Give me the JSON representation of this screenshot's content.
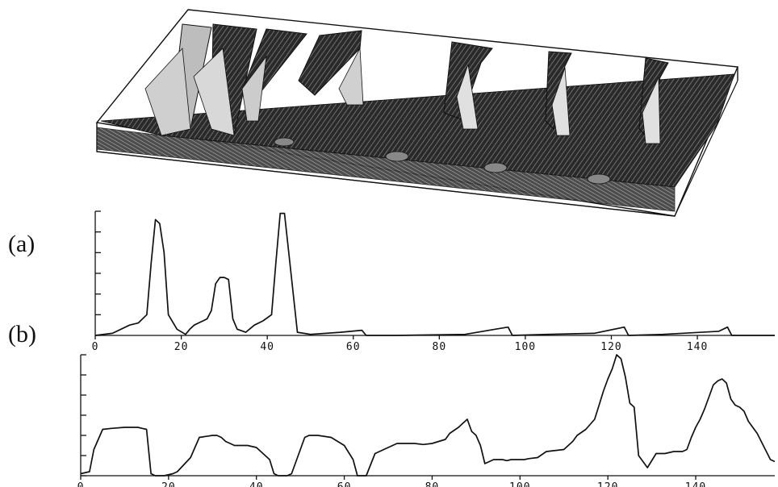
{
  "panel_labels": {
    "a": "(a)",
    "b": "(b)"
  },
  "chart_data": [
    {
      "type": "surface3d",
      "description_free": true,
      "pulses_t": [
        14,
        29,
        43,
        62,
        95,
        122,
        148
      ]
    },
    {
      "type": "line",
      "panel": "(a)",
      "xlim": [
        0,
        158
      ],
      "ylim": [
        0,
        6
      ],
      "xticks": [
        0,
        20,
        40,
        60,
        80,
        100,
        120,
        140
      ],
      "series": [
        {
          "x": [
            0,
            4,
            8,
            10,
            12,
            13,
            14,
            15,
            16,
            17,
            19,
            21,
            22,
            23,
            24,
            26,
            27,
            28,
            29,
            30,
            31,
            32,
            33,
            35,
            37,
            39,
            41,
            42,
            43,
            44,
            45,
            47,
            50,
            57,
            62,
            63,
            70,
            86,
            93,
            96,
            97,
            105,
            116,
            123,
            124,
            132,
            145,
            147,
            148,
            158
          ],
          "y": [
            0,
            0.1,
            0.5,
            0.6,
            1.0,
            3.5,
            5.6,
            5.4,
            4.0,
            1.0,
            0.3,
            0.05,
            0.3,
            0.5,
            0.6,
            0.8,
            1.2,
            2.5,
            2.8,
            2.8,
            2.7,
            0.8,
            0.3,
            0.15,
            0.5,
            0.7,
            1.0,
            3.5,
            5.9,
            5.9,
            4.0,
            0.15,
            0.05,
            0.15,
            0.25,
            0.0,
            0.0,
            0.05,
            0.3,
            0.4,
            0.0,
            0.05,
            0.1,
            0.4,
            0.0,
            0.05,
            0.2,
            0.4,
            0.0,
            0.0
          ]
        }
      ]
    },
    {
      "type": "line",
      "panel": "(b)",
      "xlim": [
        0,
        158
      ],
      "ylim": [
        0,
        6
      ],
      "xticks": [
        0,
        20,
        40,
        60,
        80,
        100,
        120,
        140
      ],
      "series": [
        {
          "x": [
            0,
            2,
            3,
            5,
            7,
            10,
            12,
            13,
            14,
            15,
            16,
            17,
            18,
            19,
            21,
            22,
            25,
            27,
            30,
            31,
            32,
            33,
            34,
            35,
            38,
            40,
            43,
            44,
            45,
            46,
            47,
            48,
            51,
            52,
            54,
            57,
            60,
            62,
            63,
            64,
            65,
            67,
            72,
            76,
            78,
            80,
            83,
            84,
            86,
            87,
            88,
            89,
            90,
            91,
            92,
            94,
            95,
            96,
            97,
            98,
            99,
            100,
            101,
            102,
            104,
            106,
            110,
            112,
            113,
            115,
            117,
            118,
            119,
            120,
            121,
            122,
            123,
            124,
            125,
            126,
            127,
            129,
            131,
            133,
            135,
            137,
            138,
            139,
            140,
            141,
            142,
            143,
            144,
            145,
            146,
            147,
            148,
            149,
            150,
            151,
            152,
            154,
            157,
            158
          ],
          "y": [
            0.1,
            0.2,
            1.3,
            2.3,
            2.35,
            2.4,
            2.4,
            2.4,
            2.35,
            2.3,
            0.1,
            0.0,
            0.0,
            0.0,
            0.1,
            0.2,
            0.9,
            1.9,
            2.0,
            2.0,
            1.9,
            1.7,
            1.6,
            1.5,
            1.5,
            1.4,
            0.8,
            0.1,
            0.0,
            0.0,
            0.0,
            0.1,
            1.9,
            2.0,
            2.0,
            1.9,
            1.5,
            0.8,
            0.0,
            0.0,
            0.0,
            1.1,
            1.6,
            1.6,
            1.55,
            1.6,
            1.8,
            2.1,
            2.4,
            2.6,
            2.8,
            2.2,
            2.0,
            1.5,
            0.6,
            0.8,
            0.8,
            0.8,
            0.75,
            0.8,
            0.8,
            0.8,
            0.8,
            0.85,
            0.9,
            1.2,
            1.3,
            1.7,
            2.0,
            2.3,
            2.8,
            3.5,
            4.2,
            4.8,
            5.3,
            6.0,
            5.8,
            4.9,
            3.6,
            3.4,
            1.0,
            0.4,
            1.1,
            1.1,
            1.2,
            1.2,
            1.3,
            1.9,
            2.4,
            2.8,
            3.3,
            3.9,
            4.5,
            4.7,
            4.8,
            4.6,
            3.8,
            3.5,
            3.4,
            3.2,
            2.7,
            2.1,
            0.8,
            0.7
          ]
        }
      ]
    }
  ]
}
